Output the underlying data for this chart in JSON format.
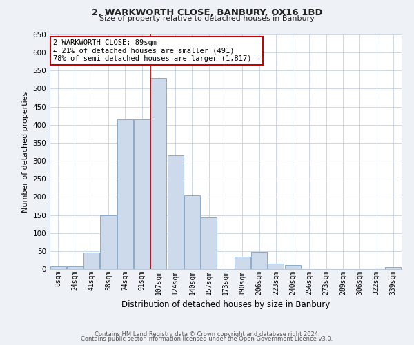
{
  "title": "2, WARKWORTH CLOSE, BANBURY, OX16 1BD",
  "subtitle": "Size of property relative to detached houses in Banbury",
  "xlabel": "Distribution of detached houses by size in Banbury",
  "ylabel": "Number of detached properties",
  "bar_labels": [
    "8sqm",
    "24sqm",
    "41sqm",
    "58sqm",
    "74sqm",
    "91sqm",
    "107sqm",
    "124sqm",
    "140sqm",
    "157sqm",
    "173sqm",
    "190sqm",
    "206sqm",
    "223sqm",
    "240sqm",
    "256sqm",
    "273sqm",
    "289sqm",
    "306sqm",
    "322sqm",
    "339sqm"
  ],
  "bar_values": [
    8,
    8,
    45,
    150,
    415,
    415,
    530,
    315,
    205,
    143,
    0,
    35,
    48,
    15,
    12,
    0,
    0,
    0,
    0,
    0,
    5
  ],
  "bar_color": "#ccdaeb",
  "bar_edge_color": "#8aaac8",
  "vline_x": 5.5,
  "vline_color": "#bb0000",
  "ylim": [
    0,
    650
  ],
  "yticks": [
    0,
    50,
    100,
    150,
    200,
    250,
    300,
    350,
    400,
    450,
    500,
    550,
    600,
    650
  ],
  "annotation_title": "2 WARKWORTH CLOSE: 89sqm",
  "annotation_line1": "← 21% of detached houses are smaller (491)",
  "annotation_line2": "78% of semi-detached houses are larger (1,817) →",
  "annotation_box_color": "#cc0000",
  "footer_line1": "Contains HM Land Registry data © Crown copyright and database right 2024.",
  "footer_line2": "Contains public sector information licensed under the Open Government Licence v3.0.",
  "bg_color": "#eef2f7",
  "plot_bg_color": "#ffffff",
  "grid_color": "#bbc8d8"
}
